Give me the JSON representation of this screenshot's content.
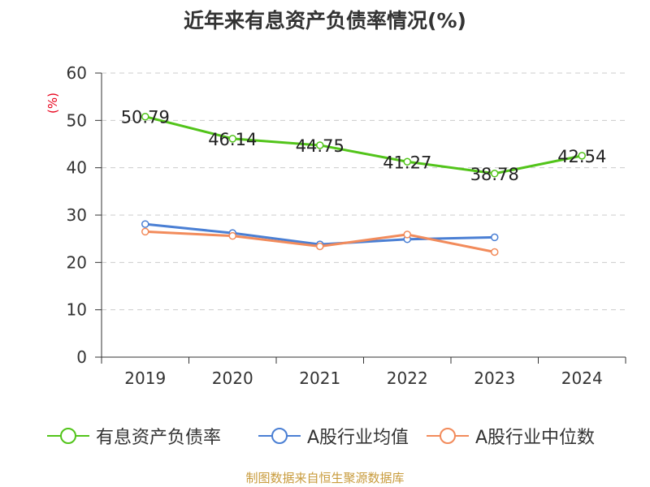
{
  "source": "制图数据来自恒生聚源数据库",
  "chart_data": {
    "type": "line",
    "title": "近年来有息资产负债率情况(%)",
    "ylabel": "(%)",
    "xlabel": "",
    "categories": [
      "2019",
      "2020",
      "2021",
      "2022",
      "2023",
      "2024"
    ],
    "ylim": [
      0,
      60
    ],
    "yticks": [
      "0",
      "10",
      "20",
      "30",
      "40",
      "50",
      "60"
    ],
    "grid": true,
    "legend_position": "bottom",
    "series": [
      {
        "name": "有息资产负债率",
        "color": "#52c41a",
        "values": [
          50.79,
          46.14,
          44.75,
          41.27,
          38.78,
          42.54
        ],
        "labels": [
          "50.79",
          "46.14",
          "44.75",
          "41.27",
          "38.78",
          "42.54"
        ],
        "show_labels": true
      },
      {
        "name": "A股行业均值",
        "color": "#4a7fd4",
        "values": [
          28.1,
          26.2,
          23.8,
          24.9,
          25.3,
          null
        ],
        "show_labels": false
      },
      {
        "name": "A股行业中位数",
        "color": "#f28b5b",
        "values": [
          26.5,
          25.6,
          23.4,
          25.9,
          22.2,
          null
        ],
        "show_labels": false
      }
    ]
  }
}
